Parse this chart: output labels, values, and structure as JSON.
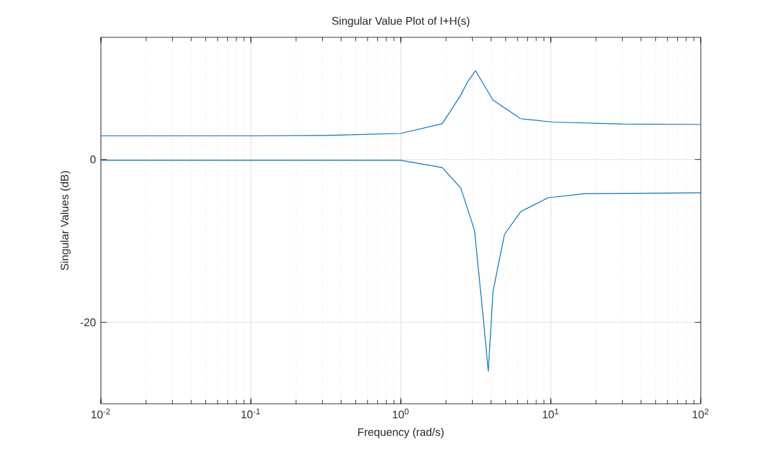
{
  "chart_data": {
    "type": "line",
    "title": "Singular Value Plot of I+H(s)",
    "xlabel": "Frequency (rad/s)",
    "ylabel": "Singular Values (dB)",
    "log": "x",
    "grid": true,
    "xlim": [
      0.01,
      100
    ],
    "ylim": [
      -30,
      15
    ],
    "xticks": [
      {
        "value": 0.01,
        "label": "10$^{-2}$"
      },
      {
        "value": 0.1,
        "label": "10$^{-1}$"
      },
      {
        "value": 1,
        "label": "10$^{0}$"
      },
      {
        "value": 10,
        "label": "10$^{1}$"
      },
      {
        "value": 100,
        "label": "10$^{2}$"
      }
    ],
    "yticks": [
      -20,
      0
    ],
    "series": [
      {
        "color": "#0072bd",
        "x": [
          0.01,
          0.1,
          0.316,
          1,
          1.89,
          2.51,
          2.8,
          3.15,
          3.57,
          4.12,
          6.3,
          10.3,
          29.8,
          100
        ],
        "values": [
          2.9,
          2.9,
          2.95,
          3.2,
          4.4,
          7.9,
          9.6,
          10.9,
          9.2,
          7.3,
          5.0,
          4.6,
          4.35,
          4.3
        ]
      },
      {
        "color": "#0072bd",
        "x": [
          0.01,
          0.1,
          1,
          1.89,
          2.51,
          3.1,
          3.57,
          3.83,
          4.12,
          4.91,
          6.3,
          9.6,
          16.8,
          100
        ],
        "values": [
          -0.1,
          -0.1,
          -0.1,
          -1.0,
          -3.5,
          -8.7,
          -20,
          -26,
          -16.2,
          -9.2,
          -6.4,
          -4.7,
          -4.2,
          -4.1
        ]
      }
    ]
  }
}
